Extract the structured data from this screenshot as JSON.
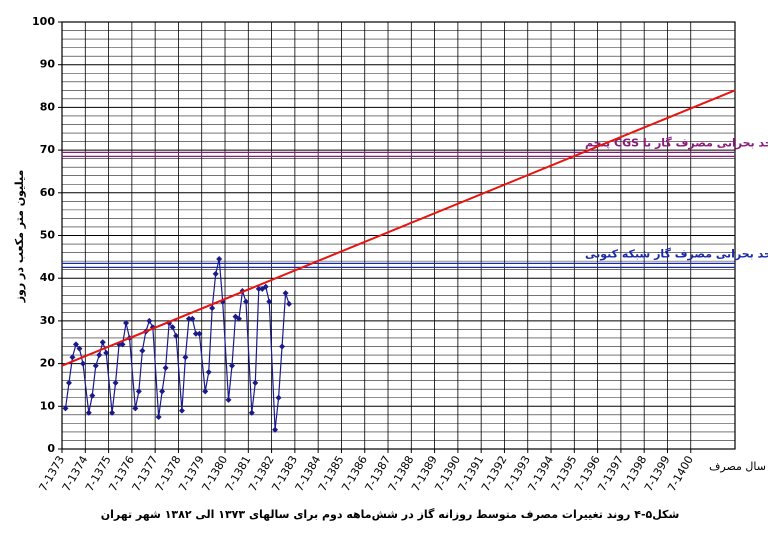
{
  "chart_data": {
    "type": "line",
    "title": "شکل۵-۴  روند تغییرات مصرف متوسط روزانه گاز در شش‌ماهه دوم برای سالهای ۱۳۷۳ الی ۱۳۸۲ شهر تهران",
    "y_label": "میلیون متر مکعب در روز",
    "x_label": "سال مصرف",
    "xlim": [
      1373,
      1401.9
    ],
    "xticks": [
      {
        "value": 1373,
        "label": "7-1373"
      },
      {
        "value": 1374,
        "label": "7-1374"
      },
      {
        "value": 1375,
        "label": "7-1375"
      },
      {
        "value": 1376,
        "label": "7-1376"
      },
      {
        "value": 1377,
        "label": "7-1377"
      },
      {
        "value": 1378,
        "label": "7-1378"
      },
      {
        "value": 1379,
        "label": "7-1379"
      },
      {
        "value": 1380,
        "label": "7-1380"
      },
      {
        "value": 1381,
        "label": "7-1381"
      },
      {
        "value": 1382,
        "label": "7-1382"
      },
      {
        "value": 1383,
        "label": "7-1383"
      },
      {
        "value": 1384,
        "label": "7-1384"
      },
      {
        "value": 1385,
        "label": "7-1385"
      },
      {
        "value": 1386,
        "label": "7-1386"
      },
      {
        "value": 1387,
        "label": "7-1387"
      },
      {
        "value": 1388,
        "label": "7-1388"
      },
      {
        "value": 1389,
        "label": "7-1389"
      },
      {
        "value": 1390,
        "label": "7-1390"
      },
      {
        "value": 1391,
        "label": "7-1391"
      },
      {
        "value": 1392,
        "label": "7-1392"
      },
      {
        "value": 1393,
        "label": "7-1393"
      },
      {
        "value": 1394,
        "label": "7-1394"
      },
      {
        "value": 1395,
        "label": "7-1395"
      },
      {
        "value": 1396,
        "label": "7-1396"
      },
      {
        "value": 1397,
        "label": "7-1397"
      },
      {
        "value": 1398,
        "label": "7-1398"
      },
      {
        "value": 1399,
        "label": "7-1399"
      },
      {
        "value": 1400,
        "label": "7-1400"
      }
    ],
    "ylim": [
      0,
      100
    ],
    "yticks": [
      0,
      10,
      20,
      30,
      40,
      50,
      60,
      70,
      80,
      90,
      100
    ],
    "yminorticks": [
      2,
      4,
      6,
      8,
      12,
      14,
      16,
      18,
      22,
      24,
      26,
      28,
      32,
      34,
      36,
      38,
      42,
      44,
      46,
      48,
      52,
      54,
      56,
      58,
      62,
      64,
      66,
      68,
      72,
      74,
      76,
      78,
      82,
      84,
      86,
      88,
      92,
      94,
      96,
      98
    ],
    "grid": true,
    "series": [
      {
        "color": "#1a1a8c",
        "marker": "diamond",
        "x": [
          1373.15,
          1373.3,
          1373.45,
          1373.6,
          1373.75,
          1373.9,
          1374.15,
          1374.3,
          1374.45,
          1374.6,
          1374.75,
          1374.9,
          1375.15,
          1375.3,
          1375.45,
          1375.6,
          1375.75,
          1375.9,
          1376.15,
          1376.3,
          1376.45,
          1376.6,
          1376.75,
          1376.9,
          1377.15,
          1377.3,
          1377.45,
          1377.6,
          1377.75,
          1377.9,
          1378.15,
          1378.3,
          1378.45,
          1378.6,
          1378.75,
          1378.9,
          1379.15,
          1379.3,
          1379.45,
          1379.6,
          1379.75,
          1379.9,
          1380.15,
          1380.3,
          1380.45,
          1380.6,
          1380.75,
          1380.9,
          1381.15,
          1381.3,
          1381.45,
          1381.6,
          1381.75,
          1381.9,
          1382.15,
          1382.3,
          1382.45,
          1382.6,
          1382.75
        ],
        "values": [
          9.5,
          15.5,
          21.5,
          24.5,
          23.5,
          20,
          8.5,
          12.5,
          19.5,
          22,
          25,
          22.5,
          8.5,
          15.5,
          24.5,
          24.5,
          29.5,
          26,
          9.5,
          13.5,
          23,
          27.5,
          30,
          28.5,
          7.5,
          13.5,
          19,
          29.5,
          28.5,
          26.5,
          9,
          21.5,
          30.5,
          30.5,
          27,
          27,
          13.5,
          18,
          33,
          41,
          44.5,
          34.5,
          11.5,
          19.5,
          31,
          30.5,
          37,
          34.5,
          8.5,
          15.5,
          37.5,
          37.5,
          38,
          34.5,
          4.5,
          12,
          24,
          36.5,
          34
        ]
      },
      {
        "color": "#e8140f",
        "x": [
          1373,
          1401.9
        ],
        "values": [
          19.5,
          84
        ]
      }
    ],
    "hlines": [
      {
        "value": 69,
        "label": "حد بحرانی مصرف گاز با CGS پنجم",
        "color": "#8b1a7a"
      },
      {
        "value": 43,
        "label": "حد بحرانی مصرف گاز شبکه کنونی",
        "color": "#1a2aa8"
      }
    ]
  }
}
